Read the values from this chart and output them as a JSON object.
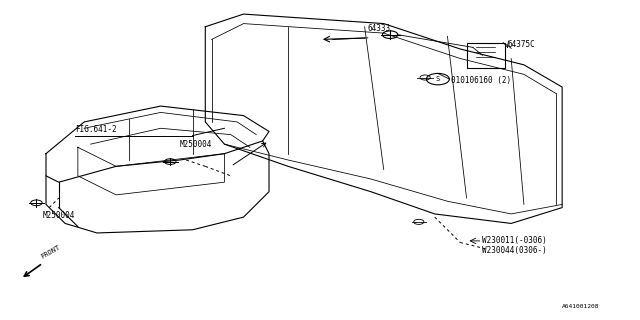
{
  "bg_color": "#ffffff",
  "line_color": "#000000",
  "fig_width": 6.4,
  "fig_height": 3.2,
  "dpi": 100,
  "labels": {
    "fig_ref": "FIG.641-2",
    "part1": "64333",
    "part2": "64375C",
    "part3": "010106160 (2)",
    "bolt1": "M250004",
    "bolt2": "M250004",
    "washer1": "W230011(-0306)",
    "washer2": "W230044(0306-)",
    "front": "FRONT",
    "diagram_id": "A641001208"
  }
}
